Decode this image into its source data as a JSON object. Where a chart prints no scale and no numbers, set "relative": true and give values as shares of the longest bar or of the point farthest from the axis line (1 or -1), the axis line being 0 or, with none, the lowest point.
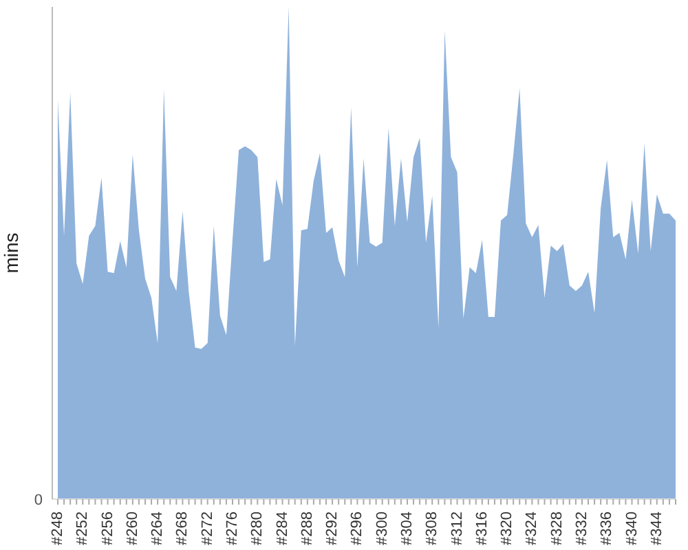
{
  "chart_data": {
    "type": "area",
    "ylabel": "mins",
    "relative": true,
    "annotations": [
      "0"
    ],
    "color": "#8fb2db",
    "categories": [
      "#248",
      null,
      null,
      null,
      "#252",
      null,
      null,
      null,
      "#256",
      null,
      null,
      null,
      "#260",
      null,
      null,
      null,
      "#264",
      null,
      null,
      null,
      "#268",
      null,
      null,
      null,
      "#272",
      null,
      null,
      null,
      "#276",
      null,
      null,
      null,
      "#280",
      null,
      null,
      null,
      "#284",
      null,
      null,
      null,
      "#288",
      null,
      null,
      null,
      "#292",
      null,
      null,
      null,
      "#296",
      null,
      null,
      null,
      "#300",
      null,
      null,
      null,
      "#304",
      null,
      null,
      null,
      "#308",
      null,
      null,
      null,
      "#312",
      null,
      null,
      null,
      "#316",
      null,
      null,
      null,
      "#320",
      null,
      null,
      null,
      "#324",
      null,
      null,
      null,
      "#328",
      null,
      null,
      null,
      "#332",
      null,
      null,
      null,
      "#336",
      null,
      null,
      null,
      "#340",
      null,
      null,
      null,
      "#344",
      null,
      null,
      null
    ],
    "values": [
      0.81,
      0.535,
      0.826,
      0.479,
      0.437,
      0.535,
      0.555,
      0.653,
      0.462,
      0.459,
      0.524,
      0.471,
      0.7,
      0.546,
      0.448,
      0.409,
      0.317,
      0.832,
      0.451,
      0.423,
      0.585,
      0.42,
      0.308,
      0.305,
      0.317,
      0.555,
      0.373,
      0.333,
      0.527,
      0.709,
      0.717,
      0.709,
      0.695,
      0.482,
      0.487,
      0.65,
      0.597,
      1,
      0.311,
      0.546,
      0.549,
      0.647,
      0.703,
      0.541,
      0.552,
      0.485,
      0.451,
      0.796,
      0.471,
      0.692,
      0.521,
      0.513,
      0.521,
      0.754,
      0.555,
      0.692,
      0.563,
      0.695,
      0.734,
      0.521,
      0.616,
      0.347,
      0.952,
      0.695,
      0.664,
      0.367,
      0.471,
      0.459,
      0.527,
      0.37,
      0.37,
      0.566,
      0.577,
      0.7,
      0.835,
      0.56,
      0.532,
      0.557,
      0.409,
      0.515,
      0.504,
      0.518,
      0.434,
      0.423,
      0.434,
      0.462,
      0.378,
      0.591,
      0.689,
      0.532,
      0.541,
      0.487,
      0.608,
      0.499,
      0.723,
      0.504,
      0.619,
      0.58,
      0.58,
      0.566
    ]
  }
}
